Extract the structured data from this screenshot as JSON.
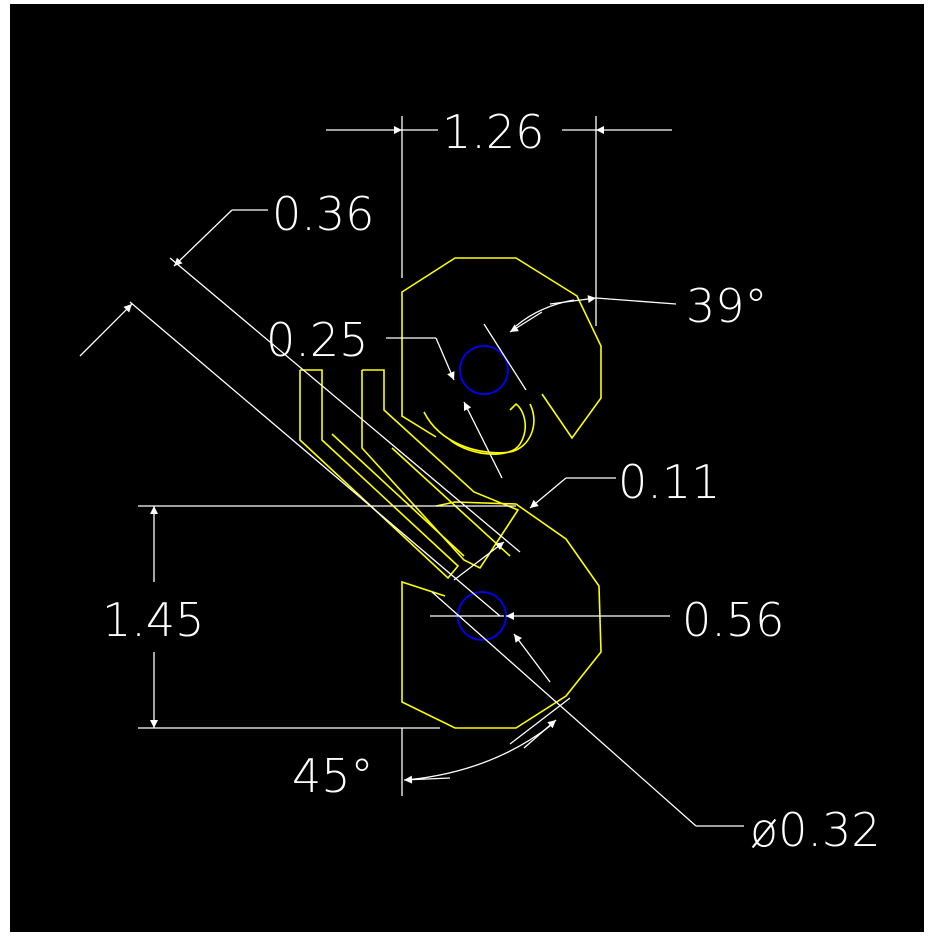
{
  "colors": {
    "background": "#000000",
    "outline": "#ffff00",
    "hole": "#0000ff",
    "dimension": "#ffffff"
  },
  "dimensions": {
    "top_width": "1.26",
    "angle_diag_offset": "0.36",
    "angle_top": "39°",
    "slot_offset": "0.25",
    "gap": "0.11",
    "height": "1.45",
    "hole_offset": "0.56",
    "angle_bottom": "45°",
    "hole_diameter": "ø0.32"
  }
}
